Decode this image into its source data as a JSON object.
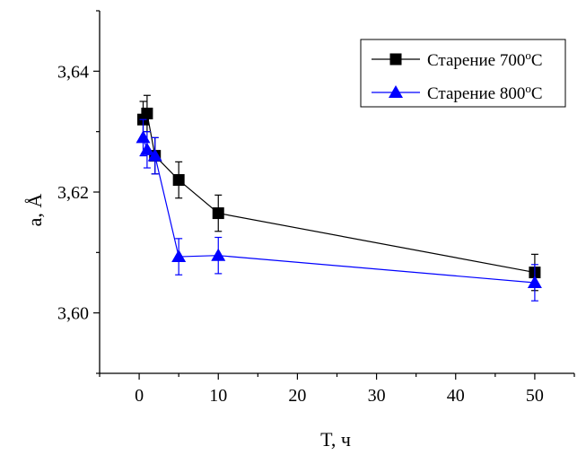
{
  "chart_data": {
    "type": "line",
    "xlabel": "T, ч",
    "ylabel": "a, Å",
    "xlim": [
      -5,
      55
    ],
    "ylim": [
      3.59,
      3.65
    ],
    "xticks": [
      0,
      10,
      20,
      30,
      40,
      50
    ],
    "yticks": [
      3.6,
      3.62,
      3.64
    ],
    "xtick_labels": [
      "0",
      "10",
      "20",
      "30",
      "40",
      "50"
    ],
    "ytick_labels": [
      "3,60",
      "3,62",
      "3,64"
    ],
    "grid": false,
    "legend_position": "top-right",
    "series": [
      {
        "name": "Старение 700°C",
        "color": "#000000",
        "line_color": "#000000",
        "marker": "square",
        "x": [
          0.5,
          1,
          2,
          5,
          10,
          50
        ],
        "y": [
          3.632,
          3.633,
          3.626,
          3.622,
          3.6165,
          3.6067
        ],
        "err": [
          0.003,
          0.003,
          0.003,
          0.003,
          0.003,
          0.003
        ]
      },
      {
        "name": "Старение 800°C",
        "color": "#0000ff",
        "line_color": "#0000ff",
        "marker": "triangle",
        "x": [
          0.5,
          1,
          2,
          5,
          10,
          50
        ],
        "y": [
          3.629,
          3.627,
          3.626,
          3.6093,
          3.6095,
          3.605
        ],
        "err": [
          0.003,
          0.003,
          0.003,
          0.003,
          0.003,
          0.003
        ]
      }
    ]
  }
}
